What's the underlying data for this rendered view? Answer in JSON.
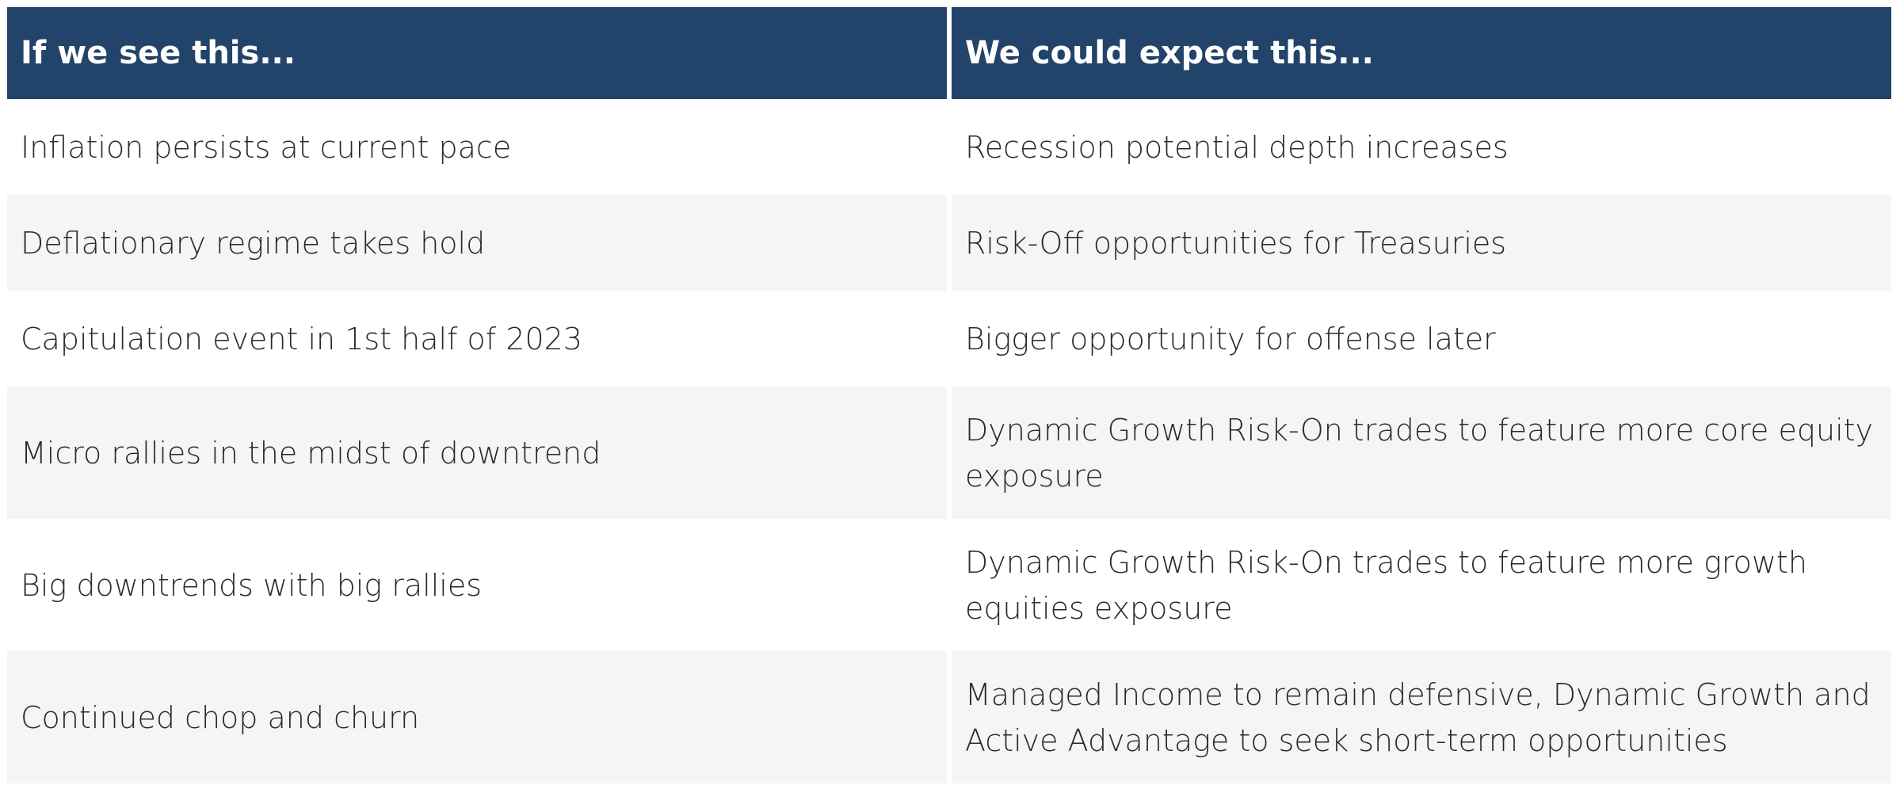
{
  "table": {
    "headers": [
      "If we see this...",
      "We could expect this..."
    ],
    "rows": [
      {
        "condition": "Inflation persists at current pace",
        "expectation": "Recession potential depth increases"
      },
      {
        "condition": "Deflationary regime takes hold",
        "expectation": "Risk-Off opportunities for Treasuries"
      },
      {
        "condition": "Capitulation event in 1st half of 2023",
        "expectation": "Bigger opportunity for offense later"
      },
      {
        "condition": "Micro rallies in the midst of downtrend",
        "expectation": "Dynamic Growth Risk-On trades to feature more core equity exposure"
      },
      {
        "condition": "Big downtrends with big rallies",
        "expectation": "Dynamic Growth Risk-On trades to feature more growth equities exposure"
      },
      {
        "condition": "Continued chop and churn",
        "expectation": "Managed Income to remain defensive, Dynamic Growth and Active Advantage to seek short-term opportunities"
      }
    ]
  },
  "colors": {
    "header_bg": "#22446a",
    "header_text": "#ffffff",
    "row_shade": "#f5f5f5",
    "body_text": "#2a2a2a"
  }
}
